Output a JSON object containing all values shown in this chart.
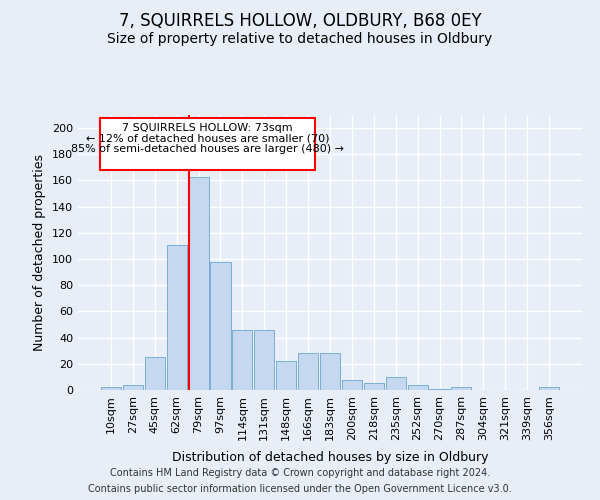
{
  "title": "7, SQUIRRELS HOLLOW, OLDBURY, B68 0EY",
  "subtitle": "Size of property relative to detached houses in Oldbury",
  "xlabel": "Distribution of detached houses by size in Oldbury",
  "ylabel": "Number of detached properties",
  "bar_labels": [
    "10sqm",
    "27sqm",
    "45sqm",
    "62sqm",
    "79sqm",
    "97sqm",
    "114sqm",
    "131sqm",
    "148sqm",
    "166sqm",
    "183sqm",
    "200sqm",
    "218sqm",
    "235sqm",
    "252sqm",
    "270sqm",
    "287sqm",
    "304sqm",
    "321sqm",
    "339sqm",
    "356sqm"
  ],
  "bar_values": [
    2,
    4,
    25,
    111,
    163,
    98,
    46,
    46,
    22,
    28,
    28,
    8,
    5,
    10,
    4,
    1,
    2,
    0,
    0,
    0,
    2
  ],
  "bar_color": "#c5d8f0",
  "bar_edge_color": "#7aaed6",
  "ylim": [
    0,
    210
  ],
  "yticks": [
    0,
    20,
    40,
    60,
    80,
    100,
    120,
    140,
    160,
    180,
    200
  ],
  "property_label": "7 SQUIRRELS HOLLOW: 73sqm",
  "annotation_line1": "← 12% of detached houses are smaller (70)",
  "annotation_line2": "85% of semi-detached houses are larger (480) →",
  "vline_bin_index": 4,
  "footer_line1": "Contains HM Land Registry data © Crown copyright and database right 2024.",
  "footer_line2": "Contains public sector information licensed under the Open Government Licence v3.0.",
  "background_color": "#e8eef8",
  "grid_color": "#ffffff",
  "title_fontsize": 12,
  "subtitle_fontsize": 10,
  "axis_label_fontsize": 9,
  "tick_fontsize": 8,
  "footer_fontsize": 7,
  "annot_fontsize": 8
}
